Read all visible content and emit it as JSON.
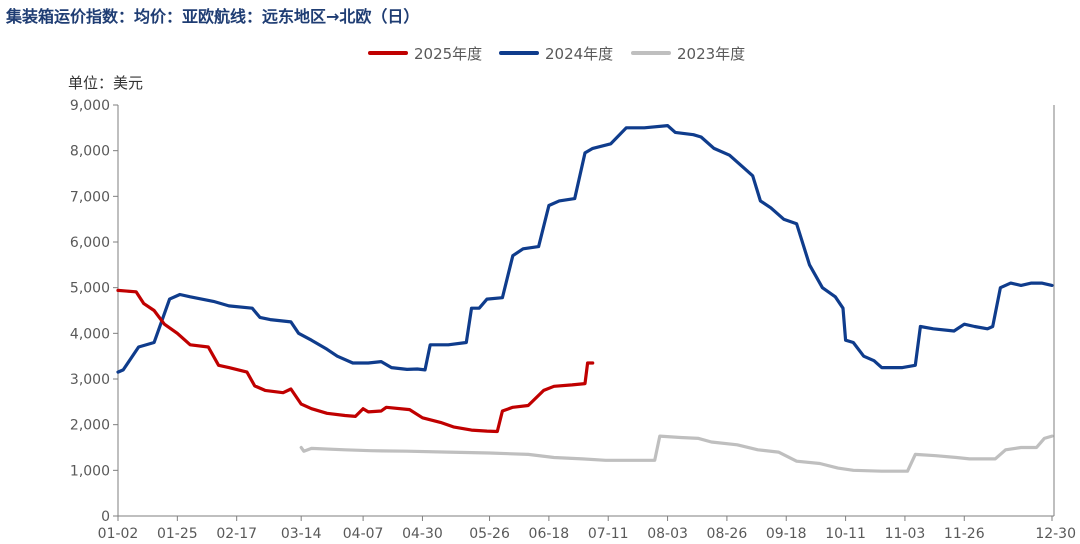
{
  "chart_data": {
    "type": "line",
    "title": "集装箱运价指数：均价：亚欧航线：远东地区→北欧（日）",
    "ylabel": "单位：美元",
    "ylim": [
      0,
      9000
    ],
    "yticks": [
      "0",
      "1,000",
      "2,000",
      "3,000",
      "4,000",
      "5,000",
      "6,000",
      "7,000",
      "8,000",
      "9,000"
    ],
    "x_axis": "day of year",
    "xticks": [
      "01-02",
      "01-25",
      "02-17",
      "03-14",
      "04-07",
      "04-30",
      "05-26",
      "06-18",
      "07-11",
      "08-03",
      "08-26",
      "09-18",
      "10-11",
      "11-03",
      "11-26",
      "12-30"
    ],
    "grid": false,
    "legend_position": "top-center",
    "series": [
      {
        "name": "2025年度",
        "color": "#c00000",
        "points": [
          [
            "01-02",
            4940
          ],
          [
            "01-09",
            4910
          ],
          [
            "01-12",
            4650
          ],
          [
            "01-16",
            4500
          ],
          [
            "01-20",
            4200
          ],
          [
            "01-25",
            4000
          ],
          [
            "01-30",
            3750
          ],
          [
            "02-06",
            3700
          ],
          [
            "02-10",
            3300
          ],
          [
            "02-14",
            3250
          ],
          [
            "02-21",
            3150
          ],
          [
            "02-24",
            2850
          ],
          [
            "02-28",
            2750
          ],
          [
            "03-07",
            2700
          ],
          [
            "03-10",
            2780
          ],
          [
            "03-14",
            2450
          ],
          [
            "03-18",
            2350
          ],
          [
            "03-24",
            2250
          ],
          [
            "03-31",
            2200
          ],
          [
            "04-04",
            2180
          ],
          [
            "04-07",
            2350
          ],
          [
            "04-09",
            2280
          ],
          [
            "04-14",
            2300
          ],
          [
            "04-16",
            2380
          ],
          [
            "04-25",
            2330
          ],
          [
            "04-30",
            2150
          ],
          [
            "05-07",
            2050
          ],
          [
            "05-12",
            1950
          ],
          [
            "05-19",
            1880
          ],
          [
            "05-25",
            1860
          ],
          [
            "05-29",
            1850
          ],
          [
            "05-31",
            2300
          ],
          [
            "06-04",
            2380
          ],
          [
            "06-10",
            2420
          ],
          [
            "06-16",
            2750
          ],
          [
            "06-20",
            2840
          ],
          [
            "06-27",
            2870
          ],
          [
            "07-02",
            2900
          ],
          [
            "07-03",
            3350
          ],
          [
            "07-05",
            3350
          ]
        ]
      },
      {
        "name": "2024年度",
        "color": "#0f3c8c",
        "points": [
          [
            "01-02",
            3150
          ],
          [
            "01-04",
            3200
          ],
          [
            "01-10",
            3700
          ],
          [
            "01-16",
            3800
          ],
          [
            "01-22",
            4750
          ],
          [
            "01-26",
            4850
          ],
          [
            "01-30",
            4800
          ],
          [
            "02-08",
            4700
          ],
          [
            "02-14",
            4600
          ],
          [
            "02-23",
            4550
          ],
          [
            "02-26",
            4350
          ],
          [
            "03-02",
            4300
          ],
          [
            "03-10",
            4250
          ],
          [
            "03-13",
            4000
          ],
          [
            "03-18",
            3850
          ],
          [
            "03-24",
            3650
          ],
          [
            "03-28",
            3500
          ],
          [
            "04-03",
            3350
          ],
          [
            "04-09",
            3350
          ],
          [
            "04-14",
            3380
          ],
          [
            "04-18",
            3250
          ],
          [
            "04-24",
            3210
          ],
          [
            "04-28",
            3220
          ],
          [
            "05-01",
            3200
          ],
          [
            "05-03",
            3750
          ],
          [
            "05-10",
            3750
          ],
          [
            "05-17",
            3800
          ],
          [
            "05-19",
            4550
          ],
          [
            "05-22",
            4550
          ],
          [
            "05-25",
            4750
          ],
          [
            "05-31",
            4780
          ],
          [
            "06-04",
            5700
          ],
          [
            "06-08",
            5850
          ],
          [
            "06-14",
            5900
          ],
          [
            "06-18",
            6800
          ],
          [
            "06-22",
            6900
          ],
          [
            "06-28",
            6950
          ],
          [
            "07-02",
            7950
          ],
          [
            "07-05",
            8050
          ],
          [
            "07-12",
            8150
          ],
          [
            "07-18",
            8500
          ],
          [
            "07-25",
            8500
          ],
          [
            "08-03",
            8550
          ],
          [
            "08-06",
            8400
          ],
          [
            "08-13",
            8350
          ],
          [
            "08-16",
            8300
          ],
          [
            "08-21",
            8050
          ],
          [
            "08-27",
            7900
          ],
          [
            "09-02",
            7600
          ],
          [
            "09-05",
            7450
          ],
          [
            "09-08",
            6900
          ],
          [
            "09-12",
            6750
          ],
          [
            "09-17",
            6500
          ],
          [
            "09-22",
            6400
          ],
          [
            "09-27",
            5500
          ],
          [
            "10-02",
            5000
          ],
          [
            "10-07",
            4800
          ],
          [
            "10-10",
            4550
          ],
          [
            "10-11",
            3850
          ],
          [
            "10-14",
            3800
          ],
          [
            "10-18",
            3500
          ],
          [
            "10-22",
            3400
          ],
          [
            "10-25",
            3250
          ],
          [
            "11-02",
            3250
          ],
          [
            "11-07",
            3300
          ],
          [
            "11-09",
            4150
          ],
          [
            "11-14",
            4100
          ],
          [
            "11-22",
            4050
          ],
          [
            "11-26",
            4200
          ],
          [
            "11-30",
            4150
          ],
          [
            "12-05",
            4100
          ],
          [
            "12-07",
            4150
          ],
          [
            "12-10",
            5000
          ],
          [
            "12-14",
            5100
          ],
          [
            "12-18",
            5050
          ],
          [
            "12-22",
            5100
          ],
          [
            "12-26",
            5100
          ],
          [
            "12-30",
            5050
          ]
        ]
      },
      {
        "name": "2023年度",
        "color": "#bfbfbf",
        "points": [
          [
            "03-14",
            1500
          ],
          [
            "03-15",
            1420
          ],
          [
            "03-18",
            1480
          ],
          [
            "03-31",
            1450
          ],
          [
            "04-10",
            1430
          ],
          [
            "04-24",
            1420
          ],
          [
            "05-10",
            1400
          ],
          [
            "05-26",
            1380
          ],
          [
            "06-10",
            1350
          ],
          [
            "06-20",
            1280
          ],
          [
            "07-01",
            1250
          ],
          [
            "07-10",
            1220
          ],
          [
            "07-20",
            1220
          ],
          [
            "07-29",
            1220
          ],
          [
            "07-31",
            1750
          ],
          [
            "08-08",
            1720
          ],
          [
            "08-15",
            1700
          ],
          [
            "08-20",
            1620
          ],
          [
            "08-30",
            1560
          ],
          [
            "09-07",
            1450
          ],
          [
            "09-15",
            1400
          ],
          [
            "09-22",
            1200
          ],
          [
            "10-01",
            1150
          ],
          [
            "10-08",
            1050
          ],
          [
            "10-14",
            1000
          ],
          [
            "10-25",
            980
          ],
          [
            "11-04",
            980
          ],
          [
            "11-07",
            1350
          ],
          [
            "11-15",
            1320
          ],
          [
            "11-23",
            1280
          ],
          [
            "11-28",
            1250
          ],
          [
            "12-08",
            1250
          ],
          [
            "12-12",
            1450
          ],
          [
            "12-18",
            1500
          ],
          [
            "12-24",
            1500
          ],
          [
            "12-27",
            1700
          ],
          [
            "12-30",
            1750
          ]
        ]
      }
    ]
  }
}
